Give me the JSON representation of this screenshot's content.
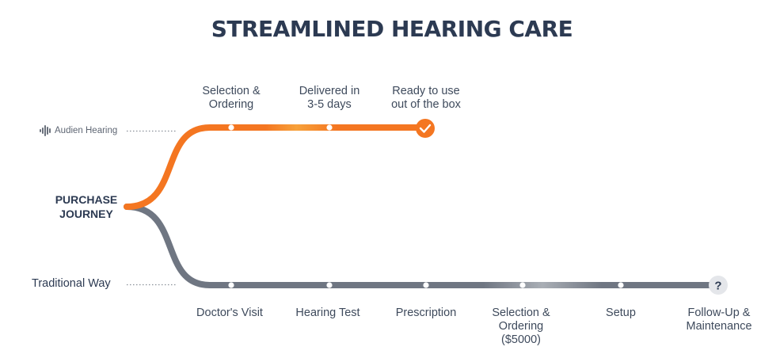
{
  "title": "STREAMLINED HEARING CARE",
  "origin": {
    "line1": "PURCHASE",
    "line2": "JOURNEY"
  },
  "colors": {
    "audien": "#f47621",
    "traditional": "#6f7682",
    "text": "#2c3a52"
  },
  "audien": {
    "label": "Audien Hearing",
    "icon": "soundwave-icon",
    "end_icon": "checkmark-icon",
    "steps": [
      {
        "line1": "Selection &",
        "line2": "Ordering"
      },
      {
        "line1": "Delivered in",
        "line2": "3-5 days"
      },
      {
        "line1": "Ready to use",
        "line2": "out of the box"
      }
    ]
  },
  "traditional": {
    "label": "Traditional Way",
    "end_icon": "question-icon",
    "end_symbol": "?",
    "steps": [
      {
        "line1": "Doctor's Visit"
      },
      {
        "line1": "Hearing Test"
      },
      {
        "line1": "Prescription"
      },
      {
        "line1": "Selection &",
        "line2": "Ordering",
        "line3": "($5000)"
      },
      {
        "line1": "Setup"
      },
      {
        "line1": "Follow-Up &",
        "line2": "Maintenance"
      }
    ]
  }
}
